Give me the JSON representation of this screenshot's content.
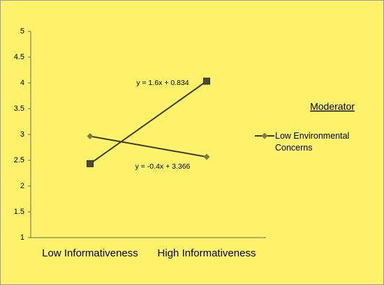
{
  "chart_data": {
    "type": "line",
    "categories": [
      "Low Informativeness",
      "High Informativeness"
    ],
    "series": [
      {
        "values": [
          2.434,
          4.034
        ],
        "color": "#3c3a2a",
        "marker": "square"
      },
      {
        "name": "Low Environmental Concerns",
        "values": [
          2.966,
          2.566
        ],
        "color": "#3c3a2a",
        "marker": "diamond"
      }
    ],
    "annotations": [
      "y = 1.6x + 0.834",
      "y = -0.4x + 3.366"
    ],
    "legend_title": "Moderator",
    "ylim": [
      1,
      5
    ],
    "yticks": [
      1,
      1.5,
      2,
      2.5,
      3,
      3.5,
      4,
      4.5,
      5
    ],
    "legend": "right"
  }
}
